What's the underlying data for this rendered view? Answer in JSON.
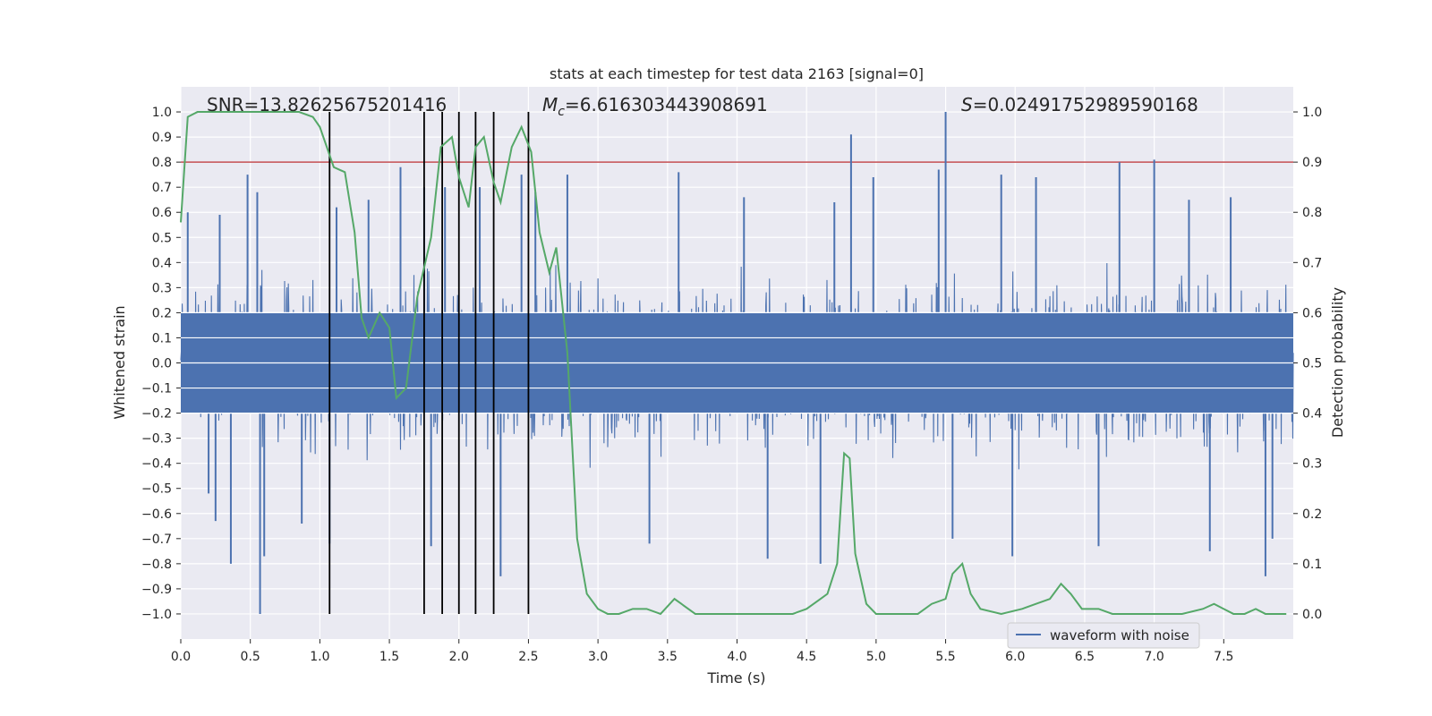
{
  "chart_data": {
    "type": "line",
    "title": "stats at each timestep for test data 2163 [signal=0]",
    "xlabel": "Time (s)",
    "ylabel_left": "Whitened strain",
    "ylabel_right": "Detection probability",
    "xlim": [
      0,
      8
    ],
    "ylim_left": [
      -1.1,
      1.1
    ],
    "ylim_right": [
      -0.05,
      1.05
    ],
    "x_ticks": [
      "0.0",
      "0.5",
      "1.0",
      "1.5",
      "2.0",
      "2.5",
      "3.0",
      "3.5",
      "4.0",
      "4.5",
      "5.0",
      "5.5",
      "6.0",
      "6.5",
      "7.0",
      "7.5"
    ],
    "y_left_ticks": [
      "1.0",
      "0.9",
      "0.8",
      "0.7",
      "0.6",
      "0.5",
      "0.4",
      "0.3",
      "0.2",
      "0.1",
      "0.0",
      "−0.1",
      "−0.2",
      "−0.3",
      "−0.4",
      "−0.5",
      "−0.6",
      "−0.7",
      "−0.8",
      "−0.9",
      "−1.0"
    ],
    "y_right_ticks": [
      "1.0",
      "0.9",
      "0.8",
      "0.7",
      "0.6",
      "0.5",
      "0.4",
      "0.3",
      "0.2",
      "0.1",
      "0.0"
    ],
    "annotations": {
      "snr": "SNR=13.82625675201416",
      "mc_symbol": "M",
      "mc_sub": "c",
      "mc_value": "=6.616303443908691",
      "s_symbol": "S",
      "s_value": "=0.02491752989590168"
    },
    "legend": {
      "entries": [
        "waveform with noise"
      ],
      "location": "lower-right"
    },
    "threshold": {
      "y": 0.8,
      "axis": "left",
      "color": "#c44e52"
    },
    "vlines": {
      "x": [
        1.07,
        1.75,
        1.88,
        2.0,
        2.12,
        2.25,
        2.5
      ],
      "y_range": [
        -1.0,
        1.0
      ],
      "color": "#000000"
    },
    "series": [
      {
        "name": "waveform with noise",
        "axis": "left",
        "color": "#4c72b0",
        "style": "dense noise",
        "envelope_typical": 0.4,
        "peaks": [
          {
            "x": 0.05,
            "y": 0.6
          },
          {
            "x": 0.2,
            "y": -0.52
          },
          {
            "x": 0.25,
            "y": -0.63
          },
          {
            "x": 0.28,
            "y": 0.59
          },
          {
            "x": 0.36,
            "y": -0.8
          },
          {
            "x": 0.48,
            "y": 0.75
          },
          {
            "x": 0.55,
            "y": 0.68
          },
          {
            "x": 0.57,
            "y": -1.0
          },
          {
            "x": 0.6,
            "y": -0.77
          },
          {
            "x": 0.87,
            "y": -0.64
          },
          {
            "x": 1.07,
            "y": -0.72
          },
          {
            "x": 1.12,
            "y": 0.62
          },
          {
            "x": 1.35,
            "y": 0.65
          },
          {
            "x": 1.58,
            "y": 0.78
          },
          {
            "x": 1.75,
            "y": 0.7
          },
          {
            "x": 1.8,
            "y": -0.73
          },
          {
            "x": 1.9,
            "y": 0.7
          },
          {
            "x": 2.15,
            "y": 0.7
          },
          {
            "x": 2.3,
            "y": -0.85
          },
          {
            "x": 2.45,
            "y": 0.75
          },
          {
            "x": 2.55,
            "y": 0.68
          },
          {
            "x": 2.78,
            "y": 0.75
          },
          {
            "x": 3.37,
            "y": -0.72
          },
          {
            "x": 3.58,
            "y": 0.76
          },
          {
            "x": 4.05,
            "y": 0.66
          },
          {
            "x": 4.22,
            "y": -0.78
          },
          {
            "x": 4.6,
            "y": -0.8
          },
          {
            "x": 4.7,
            "y": 0.64
          },
          {
            "x": 4.82,
            "y": 0.91
          },
          {
            "x": 4.98,
            "y": 0.74
          },
          {
            "x": 5.45,
            "y": 0.77
          },
          {
            "x": 5.5,
            "y": 1.0
          },
          {
            "x": 5.55,
            "y": -0.7
          },
          {
            "x": 5.9,
            "y": 0.75
          },
          {
            "x": 5.98,
            "y": -0.77
          },
          {
            "x": 6.15,
            "y": 0.74
          },
          {
            "x": 6.6,
            "y": -0.73
          },
          {
            "x": 6.75,
            "y": 0.8
          },
          {
            "x": 7.0,
            "y": 0.81
          },
          {
            "x": 7.25,
            "y": 0.65
          },
          {
            "x": 7.4,
            "y": -0.75
          },
          {
            "x": 7.55,
            "y": 0.66
          },
          {
            "x": 7.8,
            "y": -0.85
          },
          {
            "x": 7.85,
            "y": -0.7
          }
        ]
      },
      {
        "name": "",
        "axis": "right",
        "color": "#55a868",
        "x": [
          0.0,
          0.05,
          0.12,
          0.3,
          0.5,
          0.7,
          0.85,
          0.95,
          1.0,
          1.05,
          1.1,
          1.18,
          1.25,
          1.3,
          1.35,
          1.43,
          1.5,
          1.55,
          1.62,
          1.7,
          1.8,
          1.87,
          1.95,
          2.0,
          2.07,
          2.12,
          2.18,
          2.25,
          2.3,
          2.38,
          2.45,
          2.52,
          2.58,
          2.65,
          2.7,
          2.78,
          2.85,
          2.92,
          3.0,
          3.07,
          3.15,
          3.25,
          3.35,
          3.45,
          3.55,
          3.6,
          3.7,
          3.8,
          3.9,
          4.0,
          4.1,
          4.2,
          4.3,
          4.4,
          4.5,
          4.6,
          4.65,
          4.72,
          4.77,
          4.81,
          4.85,
          4.93,
          5.0,
          5.15,
          5.3,
          5.4,
          5.5,
          5.55,
          5.62,
          5.68,
          5.75,
          5.9,
          6.05,
          6.15,
          6.25,
          6.33,
          6.4,
          6.48,
          6.6,
          6.7,
          6.8,
          7.0,
          7.2,
          7.35,
          7.43,
          7.5,
          7.57,
          7.65,
          7.73,
          7.8,
          7.95
        ],
        "values": [
          0.78,
          0.99,
          1.0,
          1.0,
          1.0,
          1.0,
          1.0,
          0.99,
          0.97,
          0.93,
          0.89,
          0.88,
          0.76,
          0.59,
          0.55,
          0.6,
          0.57,
          0.43,
          0.45,
          0.63,
          0.75,
          0.93,
          0.95,
          0.87,
          0.81,
          0.93,
          0.95,
          0.86,
          0.82,
          0.93,
          0.97,
          0.92,
          0.76,
          0.68,
          0.73,
          0.52,
          0.15,
          0.04,
          0.01,
          0.0,
          0.0,
          0.01,
          0.01,
          0.0,
          0.03,
          0.02,
          0.0,
          0.0,
          0.0,
          0.0,
          0.0,
          0.0,
          0.0,
          0.0,
          0.01,
          0.03,
          0.04,
          0.1,
          0.32,
          0.31,
          0.12,
          0.02,
          0.0,
          0.0,
          0.0,
          0.02,
          0.03,
          0.08,
          0.1,
          0.04,
          0.01,
          0.0,
          0.01,
          0.02,
          0.03,
          0.06,
          0.04,
          0.01,
          0.01,
          0.0,
          0.0,
          0.0,
          0.0,
          0.01,
          0.02,
          0.01,
          0.0,
          0.0,
          0.01,
          0.0,
          0.0
        ]
      }
    ]
  }
}
